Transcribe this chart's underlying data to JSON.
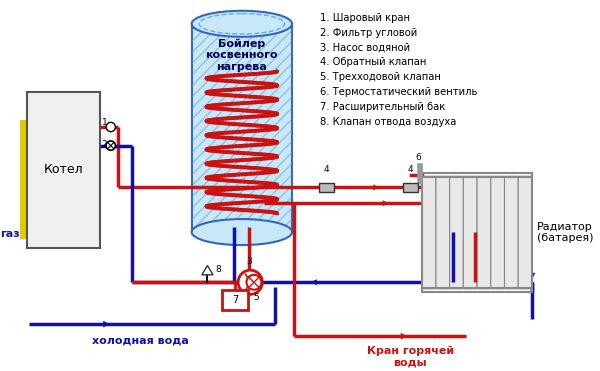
{
  "bg_color": "#ffffff",
  "legend": [
    "1. Шаровый кран",
    "2. Фильтр угловой",
    "3. Насос водяной",
    "4. Обратный клапан",
    "5. Трехходовой клапан",
    "6. Термостатический вентиль",
    "7. Расширительный бак",
    "8. Клапан отвода воздуха"
  ],
  "label_kotel": "Котел",
  "label_boiler": "Бойлер\nкосвенного\nнагрева",
  "label_gaz": "газ",
  "label_cold": "холодная вода",
  "label_hot": "Кран горячей\nводы",
  "label_radiator": "Радиатор\n(батарея)",
  "red": "#cc1111",
  "blue": "#1111aa",
  "darkblue": "#1111aa",
  "gray": "#999999",
  "yellow": "#ddcc00",
  "light_blue_fill": "#c8e8f8",
  "boiler_outline": "#3366bb"
}
